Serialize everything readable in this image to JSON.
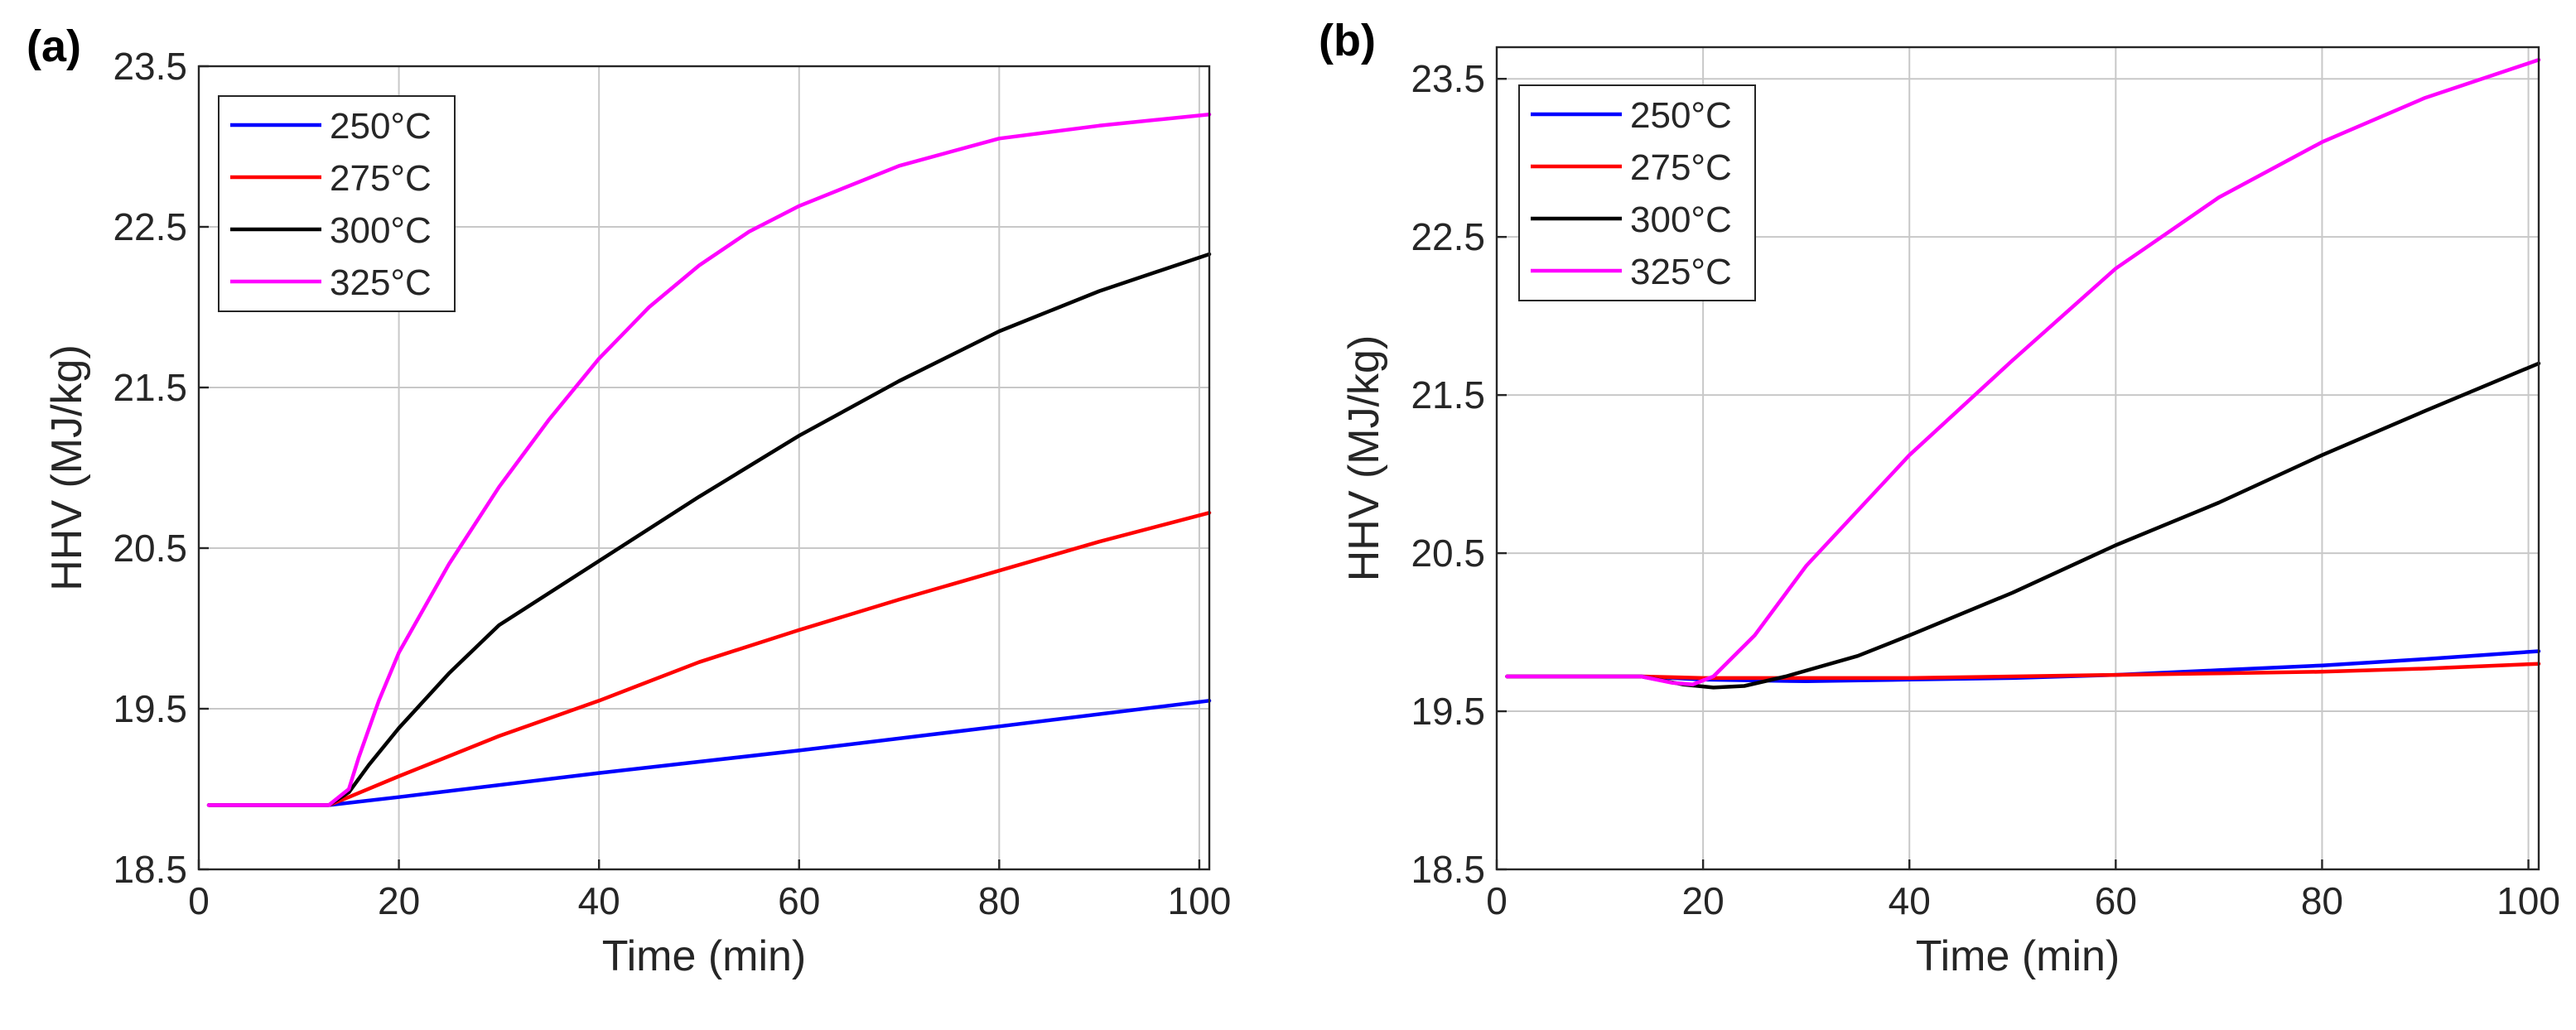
{
  "chart_data": [
    {
      "panel": "(a)",
      "type": "line",
      "xlabel": "Time (min)",
      "ylabel": "HHV (MJ/kg)",
      "xlim": [
        0,
        101
      ],
      "ylim": [
        18.5,
        23.5
      ],
      "xticks": [
        0,
        20,
        40,
        60,
        80,
        100
      ],
      "yticks": [
        18.5,
        19.5,
        20.5,
        21.5,
        22.5,
        23.5
      ],
      "ytick_labels": [
        "18.5",
        "19.5",
        "20.5",
        "21.5",
        "22.5",
        "23.5"
      ],
      "grid": true,
      "legend_position": "top-left",
      "series": [
        {
          "name": "250°C",
          "color": "#0000ff",
          "points": [
            [
              1,
              18.9
            ],
            [
              13,
              18.9
            ],
            [
              20,
              18.95
            ],
            [
              40,
              19.1
            ],
            [
              60,
              19.24
            ],
            [
              80,
              19.39
            ],
            [
              101,
              19.55
            ]
          ]
        },
        {
          "name": "275°C",
          "color": "#ff0000",
          "points": [
            [
              1,
              18.9
            ],
            [
              13,
              18.9
            ],
            [
              15,
              18.95
            ],
            [
              20,
              19.08
            ],
            [
              30,
              19.33
            ],
            [
              40,
              19.55
            ],
            [
              50,
              19.79
            ],
            [
              60,
              19.99
            ],
            [
              70,
              20.18
            ],
            [
              80,
              20.36
            ],
            [
              90,
              20.54
            ],
            [
              101,
              20.72
            ]
          ]
        },
        {
          "name": "300°C",
          "color": "#000000",
          "points": [
            [
              1,
              18.9
            ],
            [
              13,
              18.9
            ],
            [
              15,
              18.98
            ],
            [
              17,
              19.15
            ],
            [
              20,
              19.38
            ],
            [
              25,
              19.72
            ],
            [
              30,
              20.02
            ],
            [
              40,
              20.42
            ],
            [
              50,
              20.82
            ],
            [
              60,
              21.2
            ],
            [
              70,
              21.54
            ],
            [
              80,
              21.85
            ],
            [
              90,
              22.1
            ],
            [
              101,
              22.33
            ]
          ]
        },
        {
          "name": "325°C",
          "color": "#ff00ff",
          "points": [
            [
              1,
              18.9
            ],
            [
              13,
              18.9
            ],
            [
              15,
              19.0
            ],
            [
              16,
              19.2
            ],
            [
              18,
              19.55
            ],
            [
              20,
              19.85
            ],
            [
              25,
              20.4
            ],
            [
              30,
              20.88
            ],
            [
              35,
              21.3
            ],
            [
              40,
              21.68
            ],
            [
              45,
              22.0
            ],
            [
              50,
              22.26
            ],
            [
              55,
              22.47
            ],
            [
              60,
              22.63
            ],
            [
              70,
              22.88
            ],
            [
              80,
              23.05
            ],
            [
              90,
              23.13
            ],
            [
              101,
              23.2
            ]
          ]
        }
      ]
    },
    {
      "panel": "(b)",
      "type": "line",
      "xlabel": "Time (min)",
      "ylabel": "HHV (MJ/kg)",
      "xlim": [
        0,
        101
      ],
      "ylim": [
        18.5,
        23.7
      ],
      "xticks": [
        0,
        20,
        40,
        60,
        80,
        100
      ],
      "yticks": [
        18.5,
        19.5,
        20.5,
        21.5,
        22.5,
        23.5
      ],
      "ytick_labels": [
        "18.5",
        "19.5",
        "20.5",
        "21.5",
        "22.5",
        "23.5"
      ],
      "grid": true,
      "legend_position": "top-left",
      "series": [
        {
          "name": "250°C",
          "color": "#0000ff",
          "points": [
            [
              1,
              19.72
            ],
            [
              14,
              19.72
            ],
            [
              20,
              19.7
            ],
            [
              30,
              19.69
            ],
            [
              40,
              19.7
            ],
            [
              50,
              19.71
            ],
            [
              60,
              19.73
            ],
            [
              70,
              19.76
            ],
            [
              80,
              19.79
            ],
            [
              90,
              19.83
            ],
            [
              101,
              19.88
            ]
          ]
        },
        {
          "name": "275°C",
          "color": "#ff0000",
          "points": [
            [
              1,
              19.72
            ],
            [
              14,
              19.72
            ],
            [
              20,
              19.71
            ],
            [
              30,
              19.71
            ],
            [
              40,
              19.71
            ],
            [
              50,
              19.72
            ],
            [
              60,
              19.73
            ],
            [
              70,
              19.74
            ],
            [
              80,
              19.75
            ],
            [
              90,
              19.77
            ],
            [
              101,
              19.8
            ]
          ]
        },
        {
          "name": "300°C",
          "color": "#000000",
          "points": [
            [
              1,
              19.72
            ],
            [
              14,
              19.72
            ],
            [
              18,
              19.67
            ],
            [
              21,
              19.65
            ],
            [
              24,
              19.66
            ],
            [
              28,
              19.72
            ],
            [
              35,
              19.85
            ],
            [
              40,
              19.98
            ],
            [
              50,
              20.25
            ],
            [
              60,
              20.55
            ],
            [
              70,
              20.82
            ],
            [
              80,
              21.12
            ],
            [
              90,
              21.4
            ],
            [
              101,
              21.7
            ]
          ]
        },
        {
          "name": "325°C",
          "color": "#ff00ff",
          "points": [
            [
              1,
              19.72
            ],
            [
              14,
              19.72
            ],
            [
              17,
              19.68
            ],
            [
              19,
              19.67
            ],
            [
              21,
              19.72
            ],
            [
              25,
              19.98
            ],
            [
              30,
              20.42
            ],
            [
              40,
              21.12
            ],
            [
              50,
              21.72
            ],
            [
              60,
              22.3
            ],
            [
              70,
              22.75
            ],
            [
              80,
              23.1
            ],
            [
              90,
              23.38
            ],
            [
              101,
              23.62
            ]
          ]
        }
      ]
    }
  ]
}
